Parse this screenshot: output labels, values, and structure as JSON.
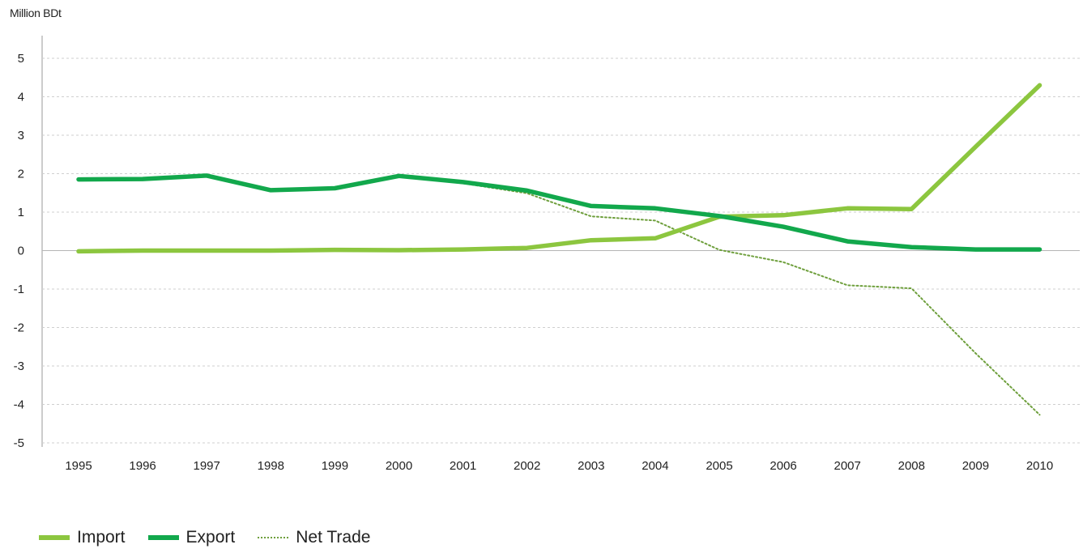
{
  "chart_data": {
    "type": "line",
    "ylabel": "Million BDt",
    "ylim": [
      -5,
      5
    ],
    "yticks": [
      5,
      4,
      3,
      2,
      1,
      0,
      -1,
      -2,
      -3,
      -4,
      -5
    ],
    "grid": "horizontal dashed",
    "legend_position": "bottom-left",
    "x": [
      "1995",
      "1996",
      "1997",
      "1998",
      "1999",
      "2000",
      "2001",
      "2002",
      "2003",
      "2004",
      "2005",
      "2006",
      "2007",
      "2008",
      "2009",
      "2010"
    ],
    "series": [
      {
        "name": "Import",
        "style": "solid",
        "color": "#8cc63f",
        "values": [
          -0.02,
          0.0,
          0.0,
          0.0,
          0.02,
          0.01,
          0.03,
          0.07,
          0.27,
          0.32,
          0.88,
          0.92,
          1.1,
          1.08,
          2.7,
          4.3
        ]
      },
      {
        "name": "Export",
        "style": "solid",
        "color": "#12a84c",
        "values": [
          1.85,
          1.86,
          1.95,
          1.57,
          1.62,
          1.94,
          1.78,
          1.56,
          1.16,
          1.1,
          0.9,
          0.62,
          0.24,
          0.09,
          0.03,
          0.03
        ]
      },
      {
        "name": "Net Trade",
        "style": "dotted",
        "color": "#6e9f3c",
        "values": [
          1.87,
          1.86,
          1.95,
          1.57,
          1.6,
          1.93,
          1.75,
          1.49,
          0.89,
          0.78,
          0.02,
          -0.3,
          -0.9,
          -0.98,
          -2.67,
          -4.27
        ]
      }
    ]
  }
}
